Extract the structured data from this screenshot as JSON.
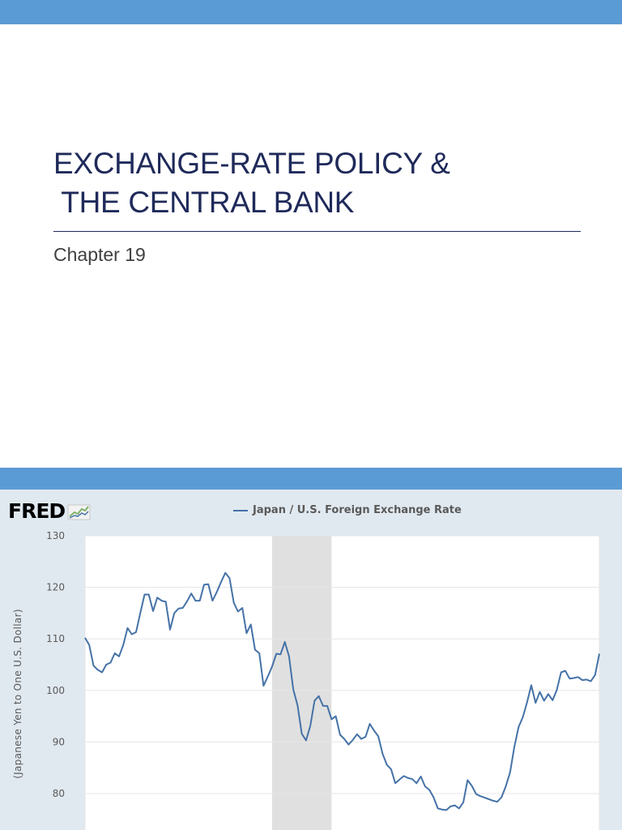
{
  "slide": {
    "title_line1": "EXCHANGE-RATE POLICY &",
    "title_line2": " THE CENTRAL BANK",
    "subtitle": "Chapter 19"
  },
  "colors": {
    "band": "#5b9bd5",
    "title": "#1f2a5a",
    "panel": "#e1e9f0",
    "series": "#4572a7",
    "recession": "#e0e0e0"
  },
  "chart_data": {
    "type": "line",
    "source_logo": "FRED",
    "title": "",
    "xlabel": "",
    "ylabel": "(Japanese Yen to One U.S. Dollar)",
    "ylim": [
      76,
      130
    ],
    "yticks": [
      80,
      90,
      100,
      110,
      120,
      130
    ],
    "grid": true,
    "legend_position": "top-center",
    "recession_band": [
      44,
      58
    ],
    "series": [
      {
        "name": "Japan / U.S. Foreign Exchange Rate",
        "values": [
          110.2,
          108.8,
          104.8,
          104,
          103.5,
          105,
          105.4,
          107.2,
          106.6,
          108.8,
          112.1,
          110.9,
          111.3,
          115,
          118.6,
          118.6,
          115.4,
          118,
          117.4,
          117.2,
          111.8,
          115,
          115.9,
          116,
          117.3,
          118.8,
          117.4,
          117.4,
          120.5,
          120.6,
          117.4,
          119.1,
          121,
          122.8,
          121.8,
          117,
          115.3,
          116,
          111.1,
          112.8,
          107.9,
          107.2,
          100.9,
          102.7,
          104.6,
          107.1,
          107,
          109.4,
          106.6,
          100.2,
          97.1,
          91.6,
          90.3,
          93.1,
          98,
          98.9,
          97,
          97,
          94.4,
          95,
          91.4,
          90.6,
          89.5,
          90.4,
          91.5,
          90.6,
          91,
          93.5,
          92.2,
          91.1,
          87.7,
          85.6,
          84.7,
          82,
          82.7,
          83.4,
          83,
          82.8,
          82,
          83.3,
          81.4,
          80.7,
          79.3,
          77.1,
          76.9,
          76.8,
          77.5,
          77.7,
          77.1,
          78.3,
          82.6,
          81.5,
          79.9,
          79.5,
          79.2,
          78.9,
          78.6,
          78.4,
          79.3,
          81.4,
          84.1,
          89,
          92.9,
          94.8,
          97.7,
          101,
          97.6,
          99.7,
          98,
          99.3,
          98.1,
          100.1,
          103.5,
          103.8,
          102.3,
          102.4,
          102.6,
          102,
          102.1,
          101.8,
          103,
          107.1
        ]
      }
    ]
  }
}
